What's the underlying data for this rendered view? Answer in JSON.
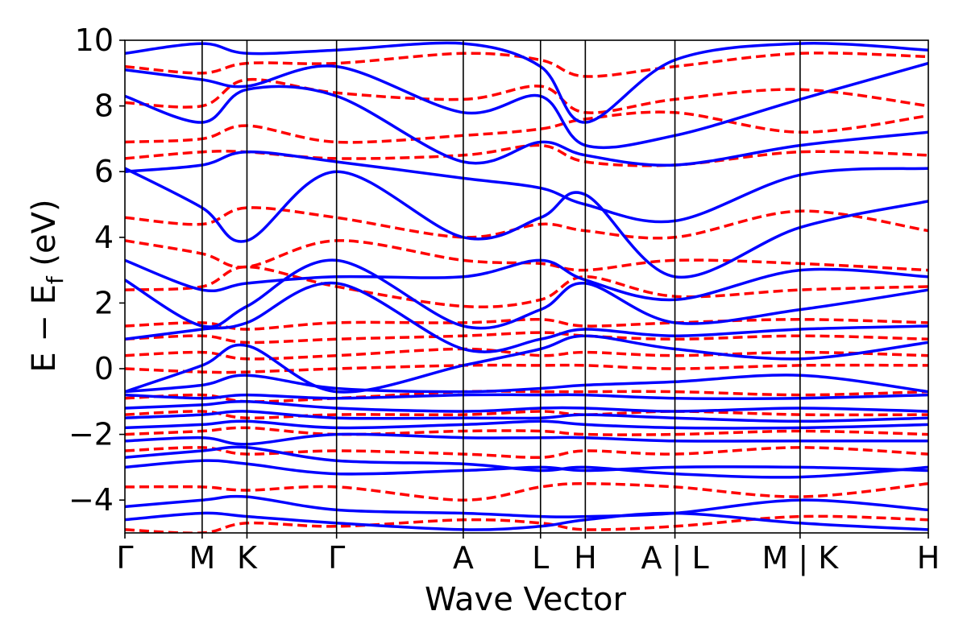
{
  "chart_data": {
    "type": "line",
    "title": "",
    "xlabel": "Wave Vector",
    "ylabel_main": "E − E",
    "ylabel_sub": "f",
    "ylabel_unit": " (eV)",
    "ylim": [
      -5,
      10
    ],
    "yticks": [
      -4,
      -2,
      0,
      2,
      4,
      6,
      8,
      10
    ],
    "ytick_labels": [
      "−4",
      "−2",
      "0",
      "2",
      "4",
      "6",
      "8",
      "10"
    ],
    "xlim": [
      0,
      5.2
    ],
    "kpoints": [
      {
        "x": 0.0,
        "label": "Γ"
      },
      {
        "x": 0.5,
        "label": "M"
      },
      {
        "x": 0.79,
        "label": "K"
      },
      {
        "x": 1.37,
        "label": "Γ"
      },
      {
        "x": 2.19,
        "label": "A"
      },
      {
        "x": 2.69,
        "label": "L"
      },
      {
        "x": 2.98,
        "label": "H"
      },
      {
        "x": 3.56,
        "label": "A | L"
      },
      {
        "x": 4.37,
        "label": "M | K"
      },
      {
        "x": 5.2,
        "label": "H"
      }
    ],
    "grid": false,
    "legend": "none",
    "colors": {
      "series_a": "#0000ff",
      "series_b": "#ff0000"
    },
    "line_styles": {
      "series_a": "solid",
      "series_b": "dashed"
    },
    "series": [
      {
        "key": "a1",
        "group": "series_a",
        "x": [
          0,
          0.5,
          0.79,
          1.37,
          2.19,
          2.69,
          2.98,
          3.56,
          4.37,
          5.2
        ],
        "y": [
          -4.6,
          -4.4,
          -4.5,
          -4.7,
          -4.9,
          -4.8,
          -4.6,
          -4.4,
          -4.7,
          -4.9
        ]
      },
      {
        "key": "a2",
        "group": "series_a",
        "x": [
          0,
          0.5,
          0.79,
          1.37,
          2.19,
          2.69,
          2.98,
          3.56,
          4.37,
          5.2
        ],
        "y": [
          -4.2,
          -4.0,
          -3.9,
          -4.3,
          -4.4,
          -4.5,
          -4.5,
          -4.4,
          -4.0,
          -4.3
        ]
      },
      {
        "key": "a3",
        "group": "series_a",
        "x": [
          0,
          0.5,
          0.79,
          1.37,
          2.19,
          2.69,
          2.98,
          3.56,
          4.37,
          5.2
        ],
        "y": [
          -3.0,
          -2.8,
          -2.9,
          -3.2,
          -3.1,
          -3.0,
          -3.1,
          -3.0,
          -3.0,
          -3.1
        ]
      },
      {
        "key": "a4",
        "group": "series_a",
        "x": [
          0,
          0.5,
          0.79,
          1.37,
          2.19,
          2.69,
          2.98,
          3.56,
          4.37,
          5.2
        ],
        "y": [
          -2.7,
          -2.5,
          -2.4,
          -2.8,
          -2.9,
          -3.1,
          -3.0,
          -3.2,
          -3.3,
          -3.0
        ]
      },
      {
        "key": "a5",
        "group": "series_a",
        "x": [
          0,
          0.5,
          0.79,
          1.37,
          2.19,
          2.69,
          2.98,
          3.56,
          4.37,
          5.2
        ],
        "y": [
          -2.2,
          -2.1,
          -2.3,
          -2.0,
          -2.1,
          -2.1,
          -2.1,
          -2.2,
          -2.2,
          -2.2
        ]
      },
      {
        "key": "a6",
        "group": "series_a",
        "x": [
          0,
          0.5,
          0.79,
          1.37,
          2.19,
          2.69,
          2.98,
          3.56,
          4.37,
          5.2
        ],
        "y": [
          -1.8,
          -1.7,
          -1.6,
          -1.8,
          -1.7,
          -1.6,
          -1.7,
          -1.8,
          -1.8,
          -1.7
        ]
      },
      {
        "key": "a7",
        "group": "series_a",
        "x": [
          0,
          0.5,
          0.79,
          1.37,
          2.19,
          2.69,
          2.98,
          3.56,
          4.37,
          5.2
        ],
        "y": [
          -1.5,
          -1.4,
          -1.3,
          -1.5,
          -1.5,
          -1.5,
          -1.4,
          -1.5,
          -1.6,
          -1.5
        ]
      },
      {
        "key": "a8",
        "group": "series_a",
        "x": [
          0,
          0.5,
          0.79,
          1.37,
          2.19,
          2.69,
          2.98,
          3.56,
          4.37,
          5.2
        ],
        "y": [
          -1.2,
          -1.1,
          -1.0,
          -1.2,
          -1.3,
          -1.2,
          -1.2,
          -1.3,
          -1.2,
          -1.3
        ]
      },
      {
        "key": "a9",
        "group": "series_a",
        "x": [
          0,
          0.5,
          0.79,
          1.37,
          2.19,
          2.69,
          2.98,
          3.56,
          4.37,
          5.2
        ],
        "y": [
          -0.8,
          -0.9,
          -0.8,
          -0.9,
          -0.8,
          -0.8,
          -0.8,
          -0.9,
          -0.9,
          -0.8
        ]
      },
      {
        "key": "a10",
        "group": "series_a",
        "x": [
          0,
          0.5,
          0.79,
          1.37,
          2.19,
          2.69,
          2.98,
          3.56,
          4.37,
          5.2
        ],
        "y": [
          -0.7,
          -0.5,
          -0.2,
          -0.6,
          -0.7,
          -0.6,
          -0.5,
          -0.4,
          -0.2,
          -0.7
        ]
      },
      {
        "key": "a11",
        "group": "series_a",
        "x": [
          0,
          0.5,
          0.79,
          1.37,
          2.19,
          2.69,
          2.98,
          3.56,
          4.37,
          5.2
        ],
        "y": [
          -0.7,
          0.1,
          0.7,
          -0.7,
          0.1,
          0.6,
          1.0,
          0.6,
          0.3,
          0.8
        ]
      },
      {
        "key": "a12",
        "group": "series_a",
        "x": [
          0,
          0.5,
          0.79,
          1.37,
          2.19,
          2.69,
          2.98,
          3.56,
          4.37,
          5.2
        ],
        "y": [
          0.9,
          1.2,
          1.4,
          2.6,
          0.6,
          0.9,
          1.2,
          1.0,
          1.2,
          1.3
        ]
      },
      {
        "key": "a13",
        "group": "series_a",
        "x": [
          0,
          0.5,
          0.79,
          1.37,
          2.19,
          2.69,
          2.98,
          3.56,
          4.37,
          5.2
        ],
        "y": [
          2.7,
          1.3,
          1.9,
          3.3,
          1.3,
          1.8,
          2.6,
          1.4,
          1.8,
          2.4
        ]
      },
      {
        "key": "a14",
        "group": "series_a",
        "x": [
          0,
          0.5,
          0.79,
          1.37,
          2.19,
          2.69,
          2.98,
          3.56,
          4.37,
          5.2
        ],
        "y": [
          3.3,
          2.4,
          2.6,
          2.8,
          2.8,
          3.3,
          2.7,
          2.1,
          3.0,
          2.8
        ]
      },
      {
        "key": "a15",
        "group": "series_a",
        "x": [
          0,
          0.5,
          0.79,
          1.37,
          2.19,
          2.69,
          2.98,
          3.56,
          4.37,
          5.2
        ],
        "y": [
          6.1,
          4.9,
          3.9,
          6.0,
          4.0,
          4.6,
          5.3,
          2.8,
          4.3,
          5.1
        ]
      },
      {
        "key": "a16",
        "group": "series_a",
        "x": [
          0,
          0.5,
          0.79,
          1.37,
          2.19,
          2.69,
          2.98,
          3.56,
          4.37,
          5.2
        ],
        "y": [
          6.0,
          6.2,
          6.6,
          6.3,
          5.8,
          5.5,
          5.0,
          4.5,
          5.9,
          6.1
        ]
      },
      {
        "key": "a17",
        "group": "series_a",
        "x": [
          0,
          0.5,
          0.79,
          1.37,
          2.19,
          2.69,
          2.98,
          3.56,
          4.37,
          5.2
        ],
        "y": [
          8.3,
          7.5,
          8.5,
          8.3,
          6.3,
          6.9,
          6.5,
          6.2,
          6.8,
          7.2
        ]
      },
      {
        "key": "a18",
        "group": "series_a",
        "x": [
          0,
          0.5,
          0.79,
          1.37,
          2.19,
          2.69,
          2.98,
          3.56,
          4.37,
          5.2
        ],
        "y": [
          9.1,
          8.8,
          8.6,
          9.2,
          7.8,
          8.3,
          6.8,
          7.1,
          8.2,
          9.3
        ]
      },
      {
        "key": "a19",
        "group": "series_a",
        "x": [
          0,
          0.5,
          0.79,
          1.37,
          2.19,
          2.69,
          2.98,
          3.56,
          4.37,
          5.2
        ],
        "y": [
          9.6,
          9.9,
          9.6,
          9.7,
          9.9,
          9.2,
          7.5,
          9.4,
          9.9,
          9.7
        ]
      },
      {
        "key": "b1",
        "group": "series_b",
        "x": [
          0,
          0.5,
          0.79,
          1.37,
          2.19,
          2.69,
          2.98,
          3.56,
          4.37,
          5.2
        ],
        "y": [
          -4.9,
          -5.0,
          -4.7,
          -4.8,
          -4.6,
          -4.7,
          -4.9,
          -4.8,
          -4.5,
          -4.6
        ]
      },
      {
        "key": "b2",
        "group": "series_b",
        "x": [
          0,
          0.5,
          0.79,
          1.37,
          2.19,
          2.69,
          2.98,
          3.56,
          4.37,
          5.2
        ],
        "y": [
          -3.6,
          -3.6,
          -3.7,
          -3.6,
          -4.0,
          -3.6,
          -3.5,
          -3.6,
          -3.9,
          -3.5
        ]
      },
      {
        "key": "b3",
        "group": "series_b",
        "x": [
          0,
          0.5,
          0.79,
          1.37,
          2.19,
          2.69,
          2.98,
          3.56,
          4.37,
          5.2
        ],
        "y": [
          -2.5,
          -2.4,
          -2.6,
          -2.5,
          -2.6,
          -2.7,
          -2.5,
          -2.6,
          -2.4,
          -2.6
        ]
      },
      {
        "key": "b4",
        "group": "series_b",
        "x": [
          0,
          0.5,
          0.79,
          1.37,
          2.19,
          2.69,
          2.98,
          3.56,
          4.37,
          5.2
        ],
        "y": [
          -2.0,
          -1.9,
          -1.8,
          -2.0,
          -1.9,
          -1.9,
          -2.0,
          -2.0,
          -1.9,
          -2.0
        ]
      },
      {
        "key": "b5",
        "group": "series_b",
        "x": [
          0,
          0.5,
          0.79,
          1.37,
          2.19,
          2.69,
          2.98,
          3.56,
          4.37,
          5.2
        ],
        "y": [
          -1.4,
          -1.3,
          -1.5,
          -1.4,
          -1.4,
          -1.3,
          -1.4,
          -1.3,
          -1.4,
          -1.4
        ]
      },
      {
        "key": "b6",
        "group": "series_b",
        "x": [
          0,
          0.5,
          0.79,
          1.37,
          2.19,
          2.69,
          2.98,
          3.56,
          4.37,
          5.2
        ],
        "y": [
          -0.9,
          -0.8,
          -1.0,
          -0.9,
          -0.7,
          -0.7,
          -0.7,
          -0.7,
          -0.8,
          -0.7
        ]
      },
      {
        "key": "b7",
        "group": "series_b",
        "x": [
          0,
          0.5,
          0.79,
          1.37,
          2.19,
          2.69,
          2.98,
          3.56,
          4.37,
          5.2
        ],
        "y": [
          0.0,
          -0.1,
          -0.1,
          0.0,
          0.1,
          0.1,
          0.1,
          0.0,
          0.1,
          0.1
        ]
      },
      {
        "key": "b8",
        "group": "series_b",
        "x": [
          0,
          0.5,
          0.79,
          1.37,
          2.19,
          2.69,
          2.98,
          3.56,
          4.37,
          5.2
        ],
        "y": [
          0.4,
          0.5,
          0.3,
          0.4,
          0.6,
          0.4,
          0.5,
          0.4,
          0.5,
          0.4
        ]
      },
      {
        "key": "b9",
        "group": "series_b",
        "x": [
          0,
          0.5,
          0.79,
          1.37,
          2.19,
          2.69,
          2.98,
          3.56,
          4.37,
          5.2
        ],
        "y": [
          0.9,
          1.0,
          0.8,
          0.9,
          1.0,
          1.1,
          1.0,
          0.9,
          1.0,
          0.9
        ]
      },
      {
        "key": "b10",
        "group": "series_b",
        "x": [
          0,
          0.5,
          0.79,
          1.37,
          2.19,
          2.69,
          2.98,
          3.56,
          4.37,
          5.2
        ],
        "y": [
          1.3,
          1.4,
          1.2,
          1.4,
          1.4,
          1.5,
          1.3,
          1.4,
          1.5,
          1.4
        ]
      },
      {
        "key": "b11",
        "group": "series_b",
        "x": [
          0,
          0.5,
          0.79,
          1.37,
          2.19,
          2.69,
          2.98,
          3.56,
          4.37,
          5.2
        ],
        "y": [
          2.4,
          2.5,
          3.1,
          2.5,
          1.9,
          2.1,
          2.8,
          2.2,
          2.4,
          2.5
        ]
      },
      {
        "key": "b12",
        "group": "series_b",
        "x": [
          0,
          0.5,
          0.79,
          1.37,
          2.19,
          2.69,
          2.98,
          3.56,
          4.37,
          5.2
        ],
        "y": [
          3.9,
          3.5,
          3.1,
          3.9,
          3.3,
          3.2,
          3.0,
          3.3,
          3.2,
          3.0
        ]
      },
      {
        "key": "b13",
        "group": "series_b",
        "x": [
          0,
          0.5,
          0.79,
          1.37,
          2.19,
          2.69,
          2.98,
          3.56,
          4.37,
          5.2
        ],
        "y": [
          4.6,
          4.4,
          4.9,
          4.6,
          4.0,
          4.4,
          4.2,
          4.0,
          4.8,
          4.2
        ]
      },
      {
        "key": "b14",
        "group": "series_b",
        "x": [
          0,
          0.5,
          0.79,
          1.37,
          2.19,
          2.69,
          2.98,
          3.56,
          4.37,
          5.2
        ],
        "y": [
          6.4,
          6.6,
          6.6,
          6.4,
          6.5,
          6.8,
          6.3,
          6.2,
          6.6,
          6.5
        ]
      },
      {
        "key": "b15",
        "group": "series_b",
        "x": [
          0,
          0.5,
          0.79,
          1.37,
          2.19,
          2.69,
          2.98,
          3.56,
          4.37,
          5.2
        ],
        "y": [
          6.9,
          7.0,
          7.4,
          6.9,
          7.1,
          7.3,
          7.6,
          7.8,
          7.2,
          7.7
        ]
      },
      {
        "key": "b16",
        "group": "series_b",
        "x": [
          0,
          0.5,
          0.79,
          1.37,
          2.19,
          2.69,
          2.98,
          3.56,
          4.37,
          5.2
        ],
        "y": [
          8.1,
          8.0,
          8.8,
          8.4,
          8.2,
          8.6,
          7.8,
          8.2,
          8.5,
          8.0
        ]
      },
      {
        "key": "b17",
        "group": "series_b",
        "x": [
          0,
          0.5,
          0.79,
          1.37,
          2.19,
          2.69,
          2.98,
          3.56,
          4.37,
          5.2
        ],
        "y": [
          9.2,
          9.0,
          9.3,
          9.3,
          9.6,
          9.4,
          8.9,
          9.2,
          9.6,
          9.5
        ]
      }
    ]
  }
}
